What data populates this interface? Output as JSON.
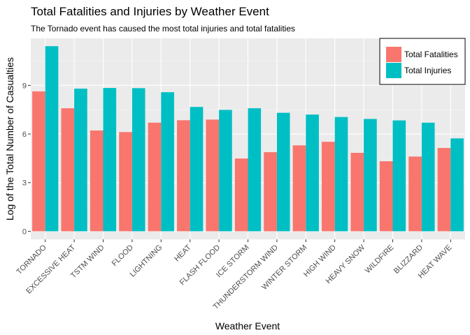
{
  "chart_data": {
    "type": "bar",
    "title": "Total Fatalities and Injuries by Weather Event",
    "subtitle": "The Tornado event has caused the most total injuries and total fatalities",
    "xlabel": "Weather Event",
    "ylabel": "Log of the Total Number of Casualties",
    "ylim": [
      -0.5,
      11.9
    ],
    "yticks": [
      0,
      3,
      6,
      9
    ],
    "grid": true,
    "legend_position": "top-right",
    "categories": [
      "TORNADO",
      "EXCESSIVE HEAT",
      "TSTM WIND",
      "FLOOD",
      "LIGHTNING",
      "HEAT",
      "FLASH FLOOD",
      "ICE STORM",
      "THUNDERSTORM WIND",
      "WINTER STORM",
      "HIGH WIND",
      "HEAVY SNOW",
      "WILDFIRE",
      "BLIZZARD",
      "HEAT WAVE"
    ],
    "series": [
      {
        "name": "Total Fatalities",
        "color": "#f8766d",
        "values": [
          8.63,
          7.59,
          6.22,
          6.12,
          6.7,
          6.85,
          6.89,
          4.49,
          4.88,
          5.3,
          5.52,
          4.84,
          4.32,
          4.61,
          5.14
        ]
      },
      {
        "name": "Total Injuries",
        "color": "#00bfc4",
        "values": [
          11.42,
          8.8,
          8.84,
          8.83,
          8.58,
          7.67,
          7.49,
          7.59,
          7.31,
          7.2,
          7.05,
          6.93,
          6.84,
          6.7,
          5.73
        ]
      }
    ]
  },
  "colors": {
    "panel_background": "#ebebeb",
    "grid_major": "#ffffff",
    "grid_minor": "#f5f5f5"
  }
}
